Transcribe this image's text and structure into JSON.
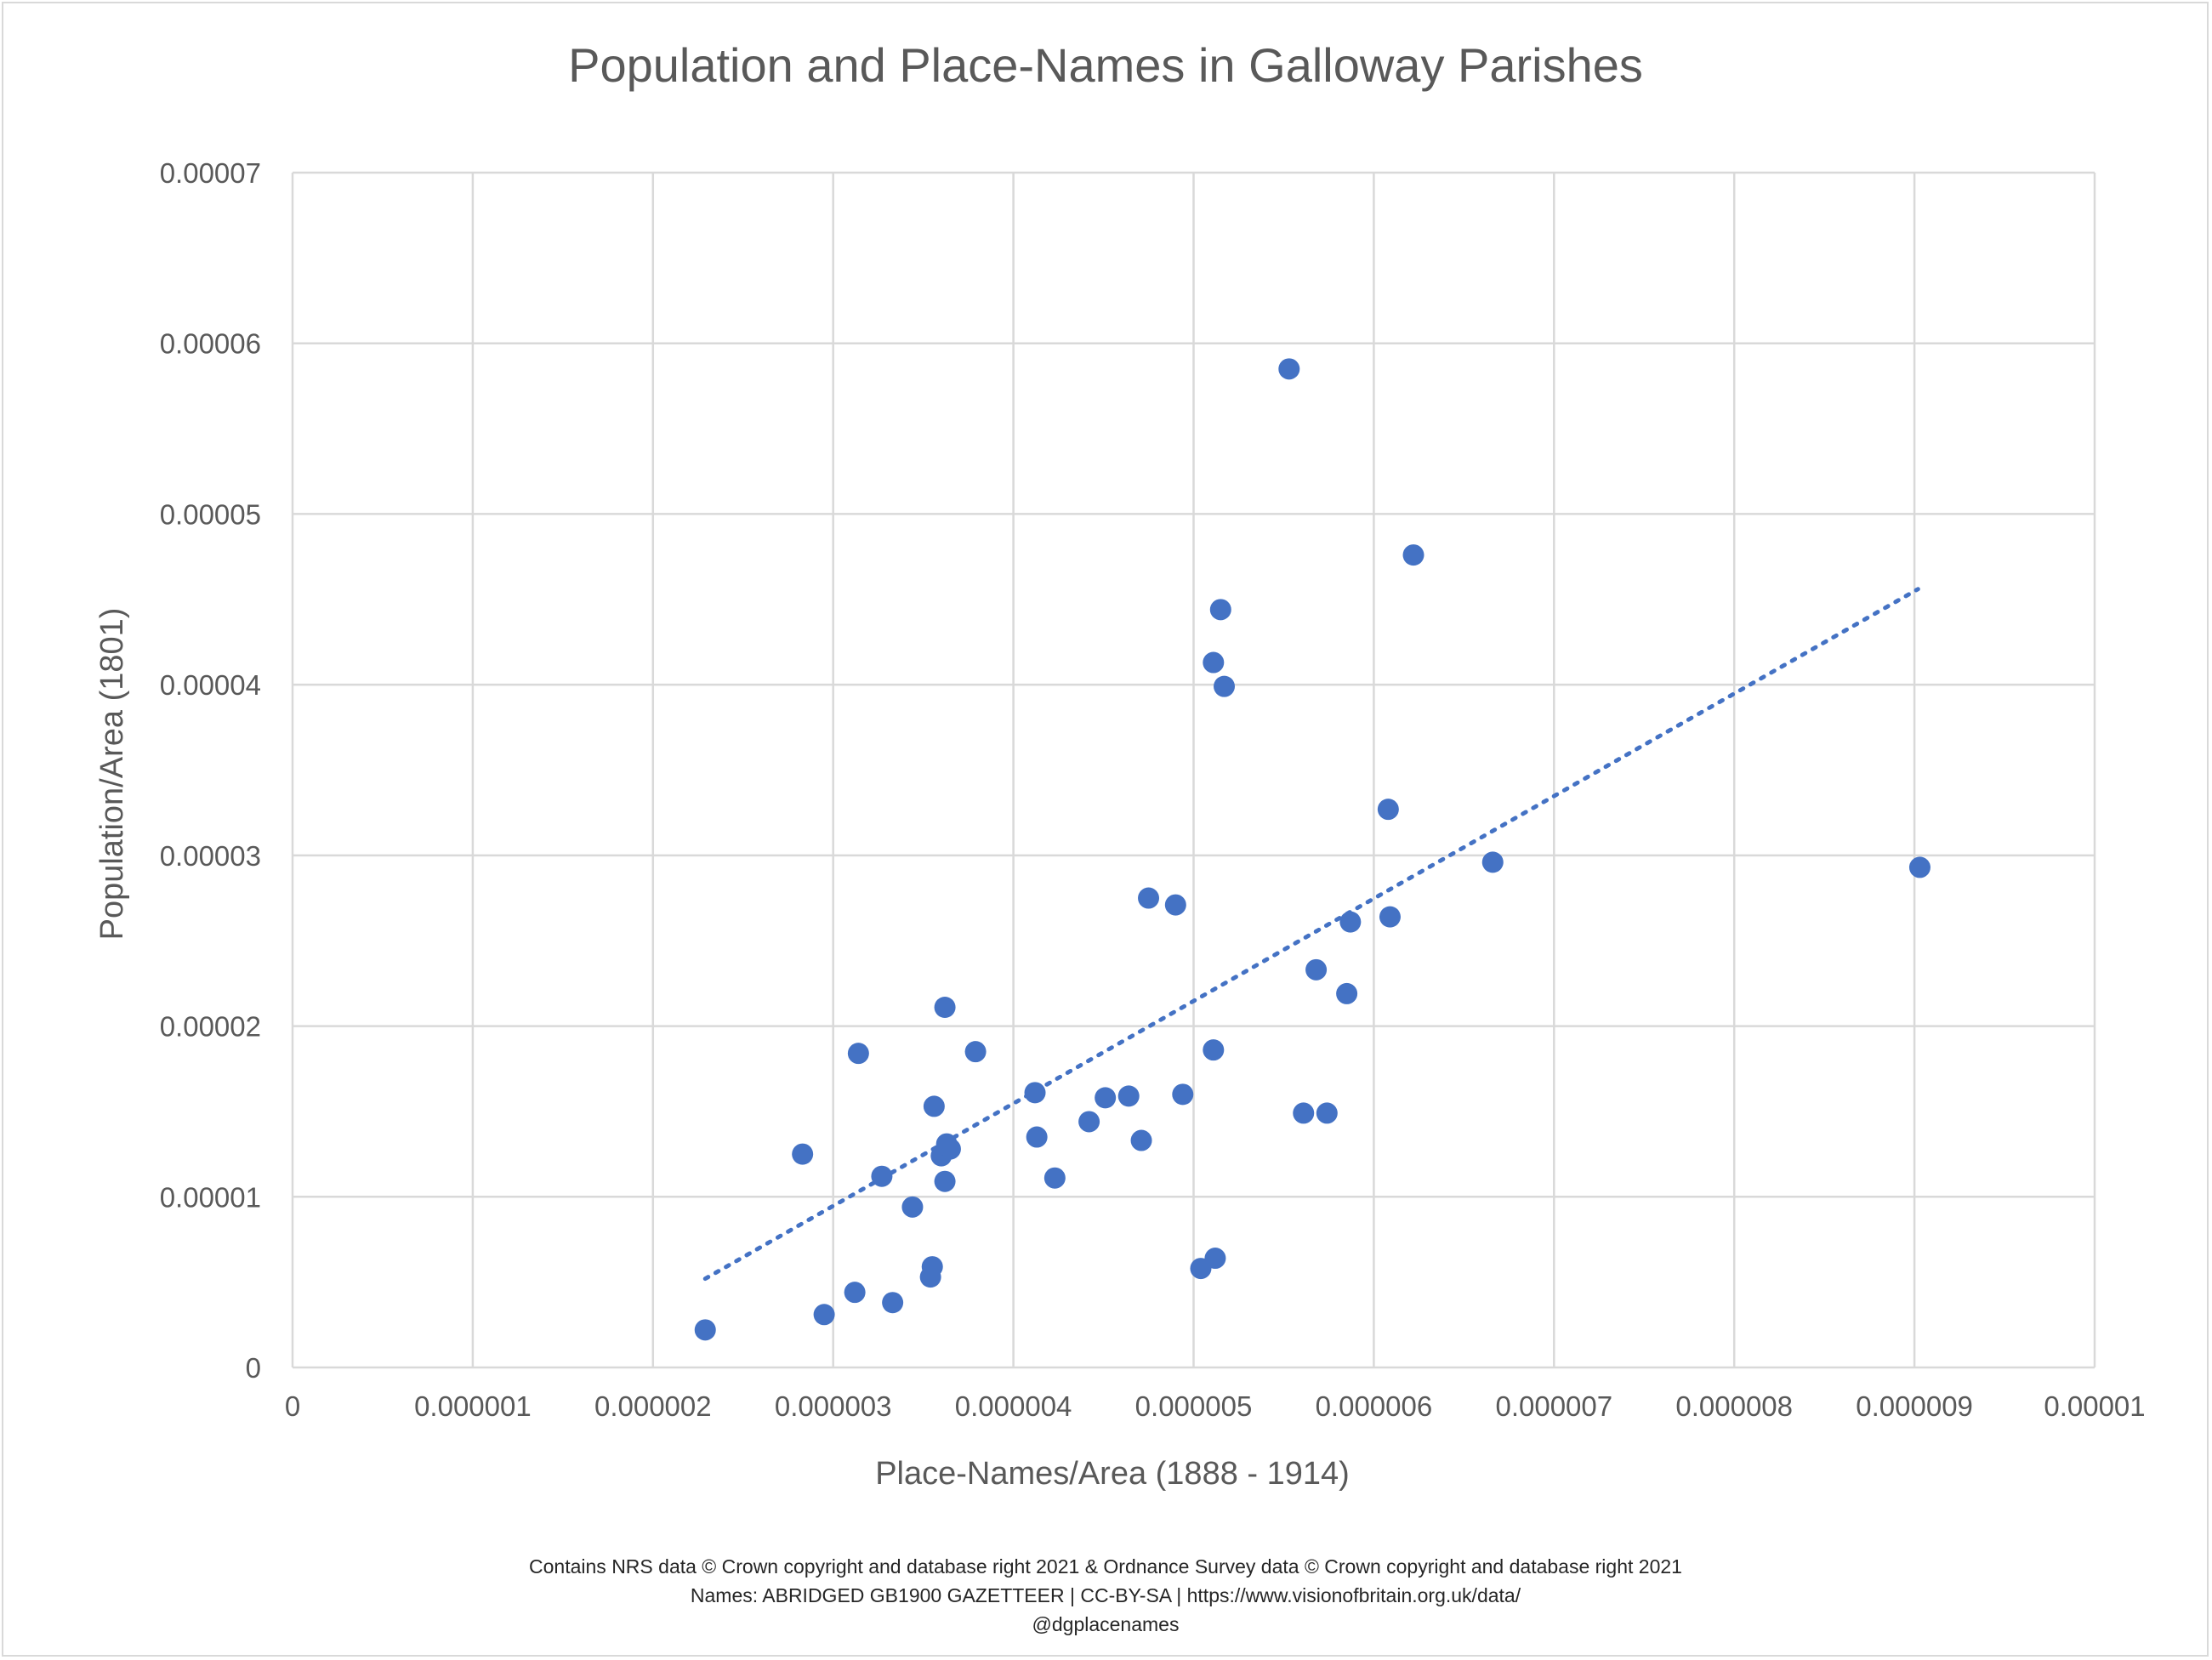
{
  "chart_data": {
    "type": "scatter",
    "title": "Population and Place-Names in Galloway Parishes",
    "xlabel": "Place-Names/Area (1888 - 1914)",
    "ylabel": "Population/Area (1801)",
    "xlim": [
      0,
      1e-05
    ],
    "ylim": [
      0,
      7e-05
    ],
    "x_ticks": [
      "0",
      "0.000001",
      "0.000002",
      "0.000003",
      "0.000004",
      "0.000005",
      "0.000006",
      "0.000007",
      "0.000008",
      "0.000009",
      "0.00001"
    ],
    "y_ticks": [
      "0",
      "0.00001",
      "0.00002",
      "0.00003",
      "0.00004",
      "0.00005",
      "0.00006",
      "0.00007"
    ],
    "grid": true,
    "trendline": {
      "style": "dotted",
      "x": [
        2.29e-06,
        9.02e-06
      ],
      "y": [
        5.2e-06,
        4.56e-05
      ]
    },
    "point_color": "#4472c4",
    "x": [
      2.29e-06,
      2.95e-06,
      3.12e-06,
      3.33e-06,
      3.54e-06,
      3.55e-06,
      2.83e-06,
      3.27e-06,
      3.44e-06,
      3.14e-06,
      3.56e-06,
      3.6e-06,
      3.62e-06,
      3.63e-06,
      3.65e-06,
      3.63e-06,
      3.62e-06,
      3.79e-06,
      4.12e-06,
      4.13e-06,
      4.23e-06,
      4.42e-06,
      4.51e-06,
      4.64e-06,
      4.71e-06,
      4.94e-06,
      4.75e-06,
      4.9e-06,
      5.11e-06,
      5.04e-06,
      5.12e-06,
      5.11e-06,
      5.15e-06,
      5.17e-06,
      5.53e-06,
      5.61e-06,
      5.68e-06,
      5.74e-06,
      5.85e-06,
      5.87e-06,
      6.08e-06,
      6.09e-06,
      6.22e-06,
      6.66e-06,
      9.03e-06
    ],
    "y": [
      2.2e-06,
      3.1e-06,
      4.4e-06,
      3.8e-06,
      5.3e-06,
      5.9e-06,
      1.25e-05,
      1.12e-05,
      9.4e-06,
      1.84e-05,
      1.53e-05,
      1.24e-05,
      1.09e-05,
      1.31e-05,
      1.28e-05,
      1.3e-05,
      2.11e-05,
      1.85e-05,
      1.61e-05,
      1.35e-05,
      1.11e-05,
      1.44e-05,
      1.58e-05,
      1.59e-05,
      1.33e-05,
      1.6e-05,
      2.75e-05,
      2.71e-05,
      1.86e-05,
      5.8e-06,
      6.4e-06,
      4.13e-05,
      4.44e-05,
      3.99e-05,
      5.85e-05,
      1.49e-05,
      2.33e-05,
      1.49e-05,
      2.19e-05,
      2.61e-05,
      3.27e-05,
      2.64e-05,
      4.76e-05,
      2.96e-05,
      2.93e-05
    ]
  },
  "credits": [
    "Contains NRS data © Crown copyright and database right 2021 & Ordnance Survey data © Crown copyright and database right 2021",
    "Names: ABRIDGED GB1900 GAZETTEER | CC-BY-SA | https://www.visionofbritain.org.uk/data/",
    "@dgplacenames"
  ]
}
